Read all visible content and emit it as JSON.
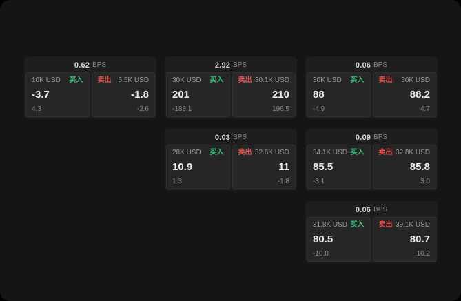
{
  "labels": {
    "buy": "买入",
    "sell": "卖出",
    "bps": "BPS"
  },
  "colors": {
    "buy": "#3cc27e",
    "sell": "#e2544e",
    "card_bg": "#1e1e1e",
    "panel_bg": "#262626",
    "screen_bg": "#151515"
  },
  "cards": [
    {
      "bps": "0.62",
      "buy": {
        "size": "10K USD",
        "price": "-3.7",
        "delta": "4.3"
      },
      "sell": {
        "size": "5.5K USD",
        "price": "-1.8",
        "delta": "-2.6"
      }
    },
    {
      "bps": "2.92",
      "buy": {
        "size": "30K USD",
        "price": "201",
        "delta": "-188.1"
      },
      "sell": {
        "size": "30.1K USD",
        "price": "210",
        "delta": "196.5"
      }
    },
    {
      "bps": "0.06",
      "buy": {
        "size": "30K USD",
        "price": "88",
        "delta": "-4.9"
      },
      "sell": {
        "size": "30K USD",
        "price": "88.2",
        "delta": "4.7"
      }
    },
    {
      "bps": "0.03",
      "buy": {
        "size": "28K USD",
        "price": "10.9",
        "delta": "1.3"
      },
      "sell": {
        "size": "32.6K USD",
        "price": "11",
        "delta": "-1.8"
      }
    },
    {
      "bps": "0.09",
      "buy": {
        "size": "34.1K USD",
        "price": "85.5",
        "delta": "-3.1"
      },
      "sell": {
        "size": "32.8K USD",
        "price": "85.8",
        "delta": "3.0"
      }
    },
    {
      "bps": "0.06",
      "buy": {
        "size": "31.8K USD",
        "price": "80.5",
        "delta": "-10.8"
      },
      "sell": {
        "size": "39.1K USD",
        "price": "80.7",
        "delta": "10.2"
      }
    }
  ]
}
